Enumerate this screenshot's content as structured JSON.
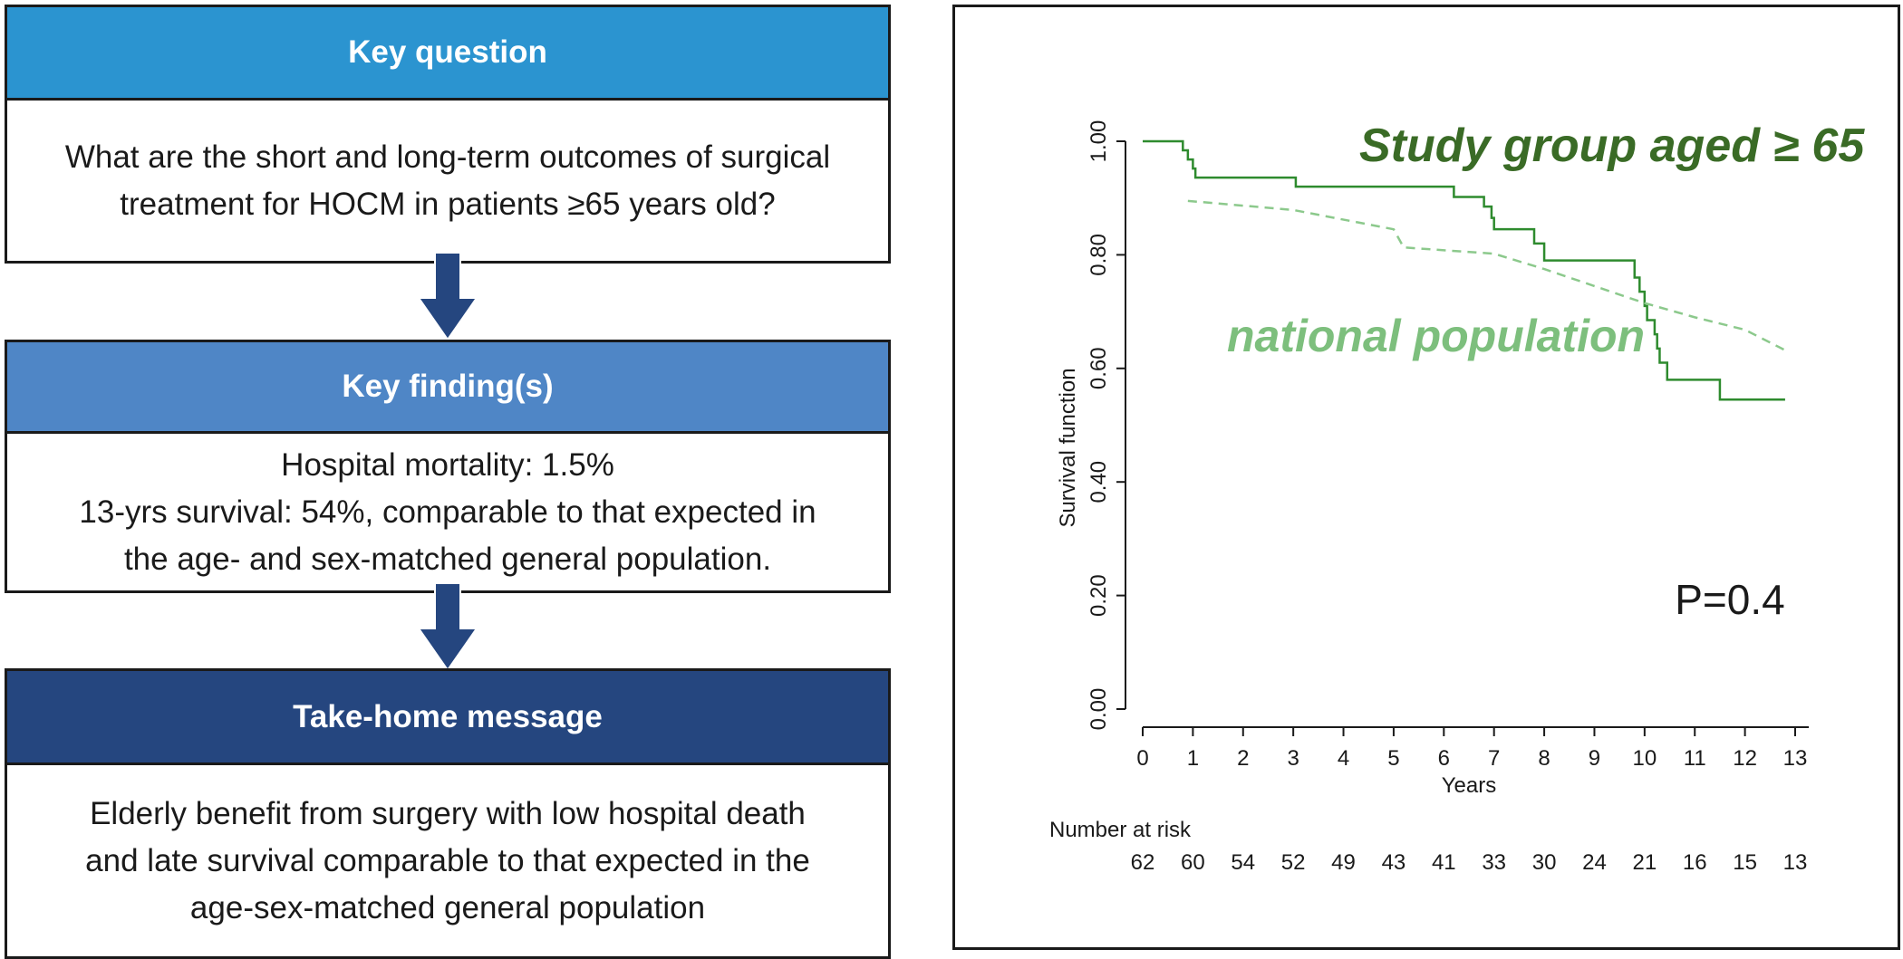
{
  "flow": {
    "key_question": {
      "title": "Key question",
      "lines": [
        "What are the short and long-term outcomes of surgical",
        "treatment for HOCM in patients ≥65 years old?"
      ],
      "header_color": "#2b94d0"
    },
    "key_findings": {
      "title": "Key finding(s)",
      "lines": [
        "Hospital mortality: 1.5%",
        "13-yrs survival: 54%, comparable to that expected in",
        "the age- and sex-matched general population."
      ],
      "header_color": "#4f86c6"
    },
    "take_home": {
      "title": "Take-home message",
      "lines": [
        "Elderly benefit from surgery with low hospital death",
        "and late survival comparable to that expected in the",
        "age-sex-matched general population"
      ],
      "header_color": "#25467f"
    },
    "arrow_color": "#25467f"
  },
  "chart_data": {
    "type": "line",
    "title": "",
    "xlabel": "Years",
    "ylabel": "Survival function",
    "xlim": [
      0,
      13
    ],
    "ylim": [
      0,
      1
    ],
    "x_ticks": [
      "0",
      "1",
      "2",
      "3",
      "4",
      "5",
      "6",
      "7",
      "8",
      "9",
      "10",
      "11",
      "12",
      "13"
    ],
    "y_ticks": [
      "0.00",
      "0.20",
      "0.40",
      "0.60",
      "0.80",
      "1.00"
    ],
    "grid": false,
    "series": [
      {
        "name": "Study group aged ≥ 65",
        "style": "solid",
        "color": "#2e8b2e",
        "label_color": "#3a6b26",
        "step": true,
        "points": [
          [
            0,
            1.0
          ],
          [
            0.8,
            0.984
          ],
          [
            0.9,
            0.968
          ],
          [
            1.0,
            0.952
          ],
          [
            1.05,
            0.936
          ],
          [
            3.05,
            0.92
          ],
          [
            6.2,
            0.902
          ],
          [
            6.8,
            0.885
          ],
          [
            6.95,
            0.865
          ],
          [
            7.0,
            0.845
          ],
          [
            7.8,
            0.82
          ],
          [
            8.0,
            0.79
          ],
          [
            9.8,
            0.76
          ],
          [
            9.9,
            0.735
          ],
          [
            10.0,
            0.71
          ],
          [
            10.05,
            0.685
          ],
          [
            10.2,
            0.66
          ],
          [
            10.25,
            0.635
          ],
          [
            10.3,
            0.61
          ],
          [
            10.45,
            0.58
          ],
          [
            11.5,
            0.545
          ],
          [
            12.8,
            0.545
          ]
        ]
      },
      {
        "name": "national population",
        "style": "dashed",
        "color": "#8cc98c",
        "label_color": "#7dbf7d",
        "step": false,
        "points": [
          [
            0.9,
            0.895
          ],
          [
            3.0,
            0.879
          ],
          [
            5.0,
            0.845
          ],
          [
            5.2,
            0.813
          ],
          [
            7.0,
            0.802
          ],
          [
            8.0,
            0.775
          ],
          [
            9.0,
            0.745
          ],
          [
            10.0,
            0.715
          ],
          [
            11.0,
            0.69
          ],
          [
            12.0,
            0.668
          ],
          [
            12.8,
            0.632
          ]
        ]
      }
    ],
    "annotation": "P=0.4",
    "number_at_risk": {
      "label": "Number at risk",
      "values": [
        "62",
        "60",
        "54",
        "52",
        "49",
        "43",
        "41",
        "33",
        "30",
        "24",
        "21",
        "16",
        "15",
        "13"
      ]
    }
  }
}
